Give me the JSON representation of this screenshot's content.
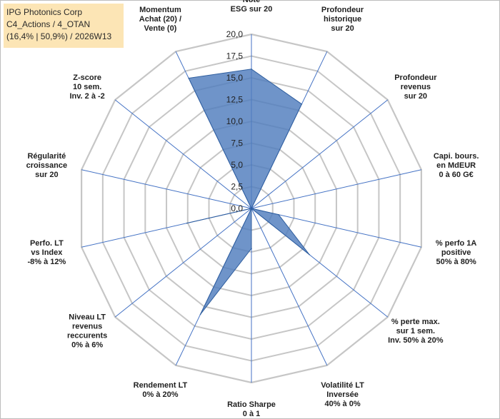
{
  "header": {
    "line1": "IPG Photonics Corp",
    "line2": "C4_Actions / 4_OTAN",
    "line3": "(16,4% | 50,9%) / 2026W13"
  },
  "colors": {
    "fill": "#4f7dbd",
    "stroke": "#2f5e9e",
    "grid": "#c6c6c6",
    "spoke": "#4472c4",
    "header_bg": "#fce5b5"
  },
  "chart_data": {
    "type": "radar",
    "title": "IPG Photonics Corp",
    "rlim": [
      0,
      20
    ],
    "ticks": [
      "0,0",
      "2,5",
      "5,0",
      "7,5",
      "10,0",
      "12,5",
      "15,0",
      "17,5",
      "20,0"
    ],
    "categories": [
      [
        "Note",
        "ESG sur 20"
      ],
      [
        "Profondeur",
        "historique",
        "sur 20"
      ],
      [
        "Profondeur",
        "revenus",
        "sur 20"
      ],
      [
        "Capi. bours.",
        "en MdEUR",
        "0 à 60 G€"
      ],
      [
        "% perfo 1A",
        "positive",
        "50% à 80%"
      ],
      [
        "% perte max.",
        "sur 1 sem.",
        "Inv. 50% à 20%"
      ],
      [
        "Volatilité LT",
        "Inversée",
        "40% à 0%"
      ],
      [
        "Ratio Sharpe",
        "0 à 1"
      ],
      [
        "Rendement LT",
        "0% à 20%"
      ],
      [
        "Niveau LT",
        "revenus",
        "reccurents",
        "0% à 6%"
      ],
      [
        "Perfo. LT",
        "vs Index",
        "-8% à 12%"
      ],
      [
        "Régularité",
        "croissance",
        "sur 20"
      ],
      [
        "Z-score",
        "10 sem.",
        "Inv. 2 à -2"
      ],
      [
        "Momentum",
        "Achat (20) /",
        "Vente (0)"
      ]
    ],
    "values": [
      16,
      13.3,
      0,
      0,
      3.2,
      8.5,
      0,
      4.6,
      13.5,
      0,
      7.6,
      0,
      0,
      16.6
    ]
  }
}
